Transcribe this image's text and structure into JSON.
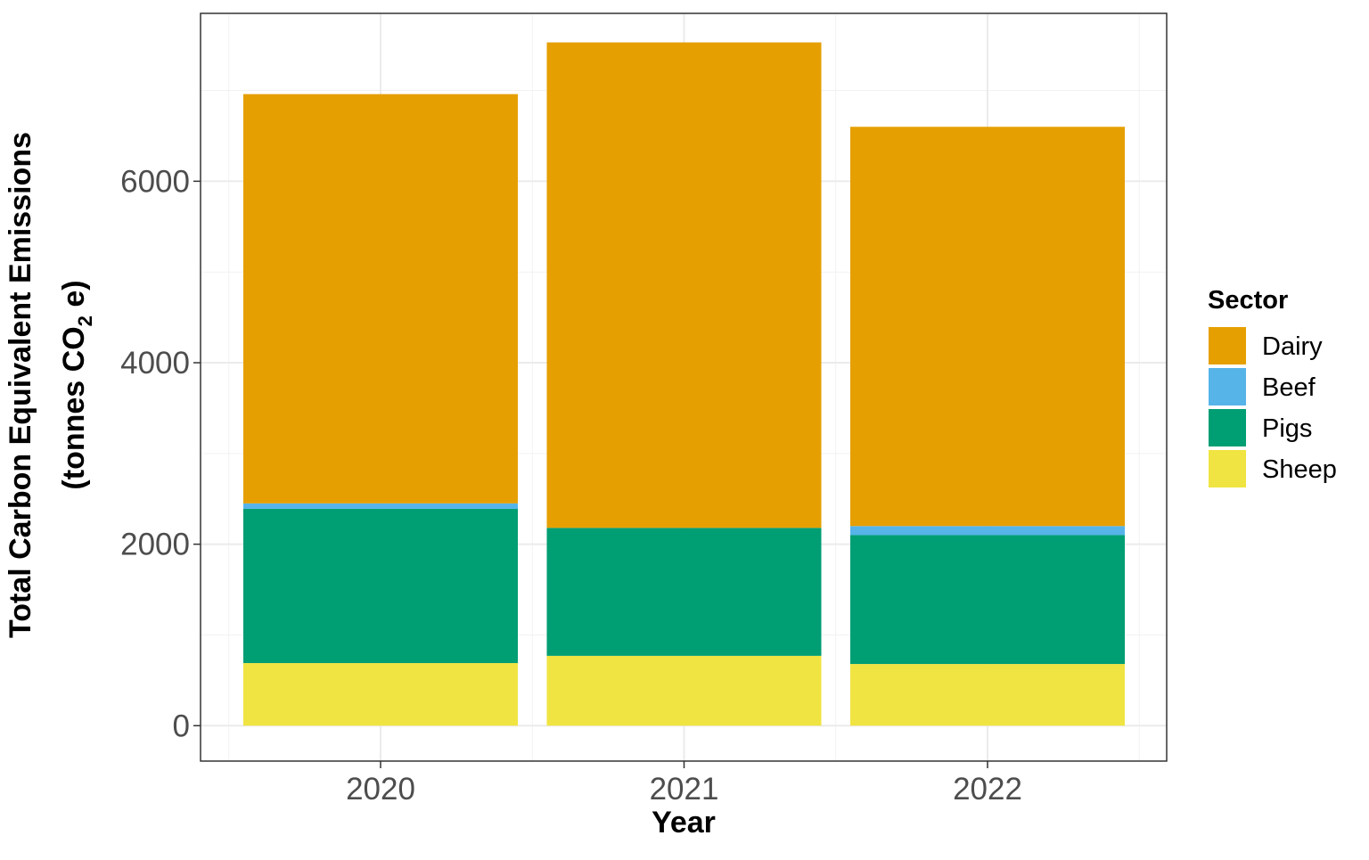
{
  "chart_data": {
    "type": "bar",
    "stacked": true,
    "categories": [
      "2020",
      "2021",
      "2022"
    ],
    "series": [
      {
        "name": "Sheep",
        "color": "#F0E442",
        "values": [
          690,
          770,
          680
        ]
      },
      {
        "name": "Pigs",
        "color": "#009E73",
        "values": [
          1700,
          1410,
          1420
        ]
      },
      {
        "name": "Beef",
        "color": "#56B4E9",
        "values": [
          60,
          0,
          100
        ]
      },
      {
        "name": "Dairy",
        "color": "#E69F00",
        "values": [
          4510,
          5350,
          4400
        ]
      }
    ],
    "legend_order": [
      "Dairy",
      "Beef",
      "Pigs",
      "Sheep"
    ],
    "title": "",
    "xlabel": "Year",
    "ylabel_line1": "Total Carbon Equivalent Emissions",
    "ylabel_line2_parts": [
      "(tonnes CO",
      "2",
      " e)"
    ],
    "legend_title": "Sector",
    "legend_position": "right",
    "ylim": [
      -390,
      7850
    ],
    "yticks": [
      0,
      2000,
      4000,
      6000
    ],
    "ytick_labels": [
      "0",
      "2000",
      "4000",
      "6000"
    ],
    "grid": true
  }
}
